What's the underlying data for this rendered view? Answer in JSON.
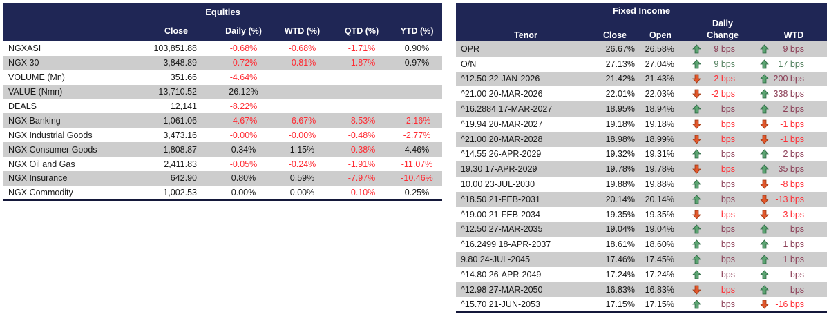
{
  "palette": {
    "navy": "#1F2655",
    "rowGray": "#CDCDCD",
    "red": "#FF2B33",
    "maroon": "#8B3D55",
    "green": "#4E7D5B",
    "arrowUpFill": "#5CA472",
    "arrowUpEdge": "#2F6B45",
    "arrowDownFill": "#E2572B",
    "arrowDownEdge": "#A03B17",
    "borderDark": "#14183A"
  },
  "icons": {
    "up": "up-arrow-icon",
    "down": "down-arrow-icon"
  },
  "equities": {
    "title": "Equities",
    "columns": [
      "Close",
      "Daily (%)",
      "WTD (%)",
      "QTD (%)",
      "YTD (%)"
    ],
    "rows": [
      {
        "name": "NGXASI",
        "close": "103,851.88",
        "daily": "-0.68%",
        "wtd": "-0.68%",
        "qtd": "-1.71%",
        "ytd": "0.90%"
      },
      {
        "name": "NGX 30",
        "close": "3,848.89",
        "daily": "-0.72%",
        "wtd": "-0.81%",
        "qtd": "-1.87%",
        "ytd": "0.97%"
      },
      {
        "name": "VOLUME (Mn)",
        "close": "351.66",
        "daily": "-4.64%",
        "wtd": "",
        "qtd": "",
        "ytd": ""
      },
      {
        "name": "VALUE (Nmn)",
        "close": "13,710.52",
        "daily": "26.12%",
        "wtd": "",
        "qtd": "",
        "ytd": ""
      },
      {
        "name": "DEALS",
        "close": "12,141",
        "daily": "-8.22%",
        "wtd": "",
        "qtd": "",
        "ytd": ""
      },
      {
        "name": "NGX Banking",
        "close": "1,061.06",
        "daily": "-4.67%",
        "wtd": "-6.67%",
        "qtd": "-8.53%",
        "ytd": "-2.16%"
      },
      {
        "name": "NGX Industrial Goods",
        "close": "3,473.16",
        "daily": "-0.00%",
        "wtd": "-0.00%",
        "qtd": "-0.48%",
        "ytd": "-2.77%"
      },
      {
        "name": "NGX Consumer Goods",
        "close": "1,808.87",
        "daily": "0.34%",
        "wtd": "1.15%",
        "qtd": "-0.38%",
        "ytd": "4.46%"
      },
      {
        "name": "NGX Oil and Gas",
        "close": "2,411.83",
        "daily": "-0.05%",
        "wtd": "-0.24%",
        "qtd": "-1.91%",
        "ytd": "-11.07%"
      },
      {
        "name": "NGX Insurance",
        "close": "642.90",
        "daily": "0.80%",
        "wtd": "0.59%",
        "qtd": "-7.97%",
        "ytd": "-10.46%"
      },
      {
        "name": "NGX Commodity",
        "close": "1,002.53",
        "daily": "0.00%",
        "wtd": "0.00%",
        "qtd": "-0.10%",
        "ytd": "0.25%"
      }
    ]
  },
  "fixed_income": {
    "title": "Fixed Income",
    "daily_label": "Daily",
    "columns": [
      "Tenor",
      "Close",
      "Open",
      "Change",
      "WTD"
    ],
    "rows": [
      {
        "tenor": "OPR",
        "close": "26.67%",
        "open": "26.58%",
        "daily": {
          "dir": "up",
          "val": "9 bps",
          "color": "maroon"
        },
        "wtd": {
          "dir": "up",
          "val": "9 bps",
          "color": "maroon"
        }
      },
      {
        "tenor": "O/N",
        "close": "27.13%",
        "open": "27.04%",
        "daily": {
          "dir": "up",
          "val": "9 bps",
          "color": "green"
        },
        "wtd": {
          "dir": "up",
          "val": "17 bps",
          "color": "green"
        }
      },
      {
        "tenor": "^12.50 22-JAN-2026",
        "close": "21.42%",
        "open": "21.43%",
        "daily": {
          "dir": "down",
          "val": "-2 bps",
          "color": "red"
        },
        "wtd": {
          "dir": "up",
          "val": "200 bps",
          "color": "maroon"
        }
      },
      {
        "tenor": "^21.00 20-MAR-2026",
        "close": "22.01%",
        "open": "22.03%",
        "daily": {
          "dir": "down",
          "val": "-2 bps",
          "color": "red"
        },
        "wtd": {
          "dir": "up",
          "val": "338 bps",
          "color": "maroon"
        }
      },
      {
        "tenor": "^16.2884 17-MAR-2027",
        "close": "18.95%",
        "open": "18.94%",
        "daily": {
          "dir": "up",
          "val": "bps",
          "color": "maroon"
        },
        "wtd": {
          "dir": "up",
          "val": "2 bps",
          "color": "maroon"
        }
      },
      {
        "tenor": "^19.94 20-MAR-2027",
        "close": "19.18%",
        "open": "19.18%",
        "daily": {
          "dir": "down",
          "val": "bps",
          "color": "red"
        },
        "wtd": {
          "dir": "down",
          "val": "-1 bps",
          "color": "red"
        }
      },
      {
        "tenor": "^21.00 20-MAR-2028",
        "close": "18.98%",
        "open": "18.99%",
        "daily": {
          "dir": "down",
          "val": "bps",
          "color": "red"
        },
        "wtd": {
          "dir": "down",
          "val": "-1 bps",
          "color": "red"
        }
      },
      {
        "tenor": "^14.55 26-APR-2029",
        "close": "19.32%",
        "open": "19.31%",
        "daily": {
          "dir": "up",
          "val": "bps",
          "color": "maroon"
        },
        "wtd": {
          "dir": "up",
          "val": "2 bps",
          "color": "maroon"
        }
      },
      {
        "tenor": "19.30 17-APR-2029",
        "close": "19.78%",
        "open": "19.78%",
        "daily": {
          "dir": "down",
          "val": "bps",
          "color": "red"
        },
        "wtd": {
          "dir": "up",
          "val": "35 bps",
          "color": "maroon"
        }
      },
      {
        "tenor": "10.00 23-JUL-2030",
        "close": "19.88%",
        "open": "19.88%",
        "daily": {
          "dir": "up",
          "val": "bps",
          "color": "maroon"
        },
        "wtd": {
          "dir": "down",
          "val": "-8 bps",
          "color": "red"
        }
      },
      {
        "tenor": "^18.50 21-FEB-2031",
        "close": "20.14%",
        "open": "20.14%",
        "daily": {
          "dir": "up",
          "val": "bps",
          "color": "maroon"
        },
        "wtd": {
          "dir": "down",
          "val": "-13 bps",
          "color": "red"
        }
      },
      {
        "tenor": "^19.00 21-FEB-2034",
        "close": "19.35%",
        "open": "19.35%",
        "daily": {
          "dir": "down",
          "val": "bps",
          "color": "red"
        },
        "wtd": {
          "dir": "down",
          "val": "-3 bps",
          "color": "red"
        }
      },
      {
        "tenor": "^12.50 27-MAR-2035",
        "close": "19.04%",
        "open": "19.04%",
        "daily": {
          "dir": "up",
          "val": "bps",
          "color": "maroon"
        },
        "wtd": {
          "dir": "up",
          "val": "bps",
          "color": "maroon"
        }
      },
      {
        "tenor": "^16.2499 18-APR-2037",
        "close": "18.61%",
        "open": "18.60%",
        "daily": {
          "dir": "up",
          "val": "bps",
          "color": "maroon"
        },
        "wtd": {
          "dir": "up",
          "val": "1 bps",
          "color": "maroon"
        }
      },
      {
        "tenor": "9.80 24-JUL-2045",
        "close": "17.46%",
        "open": "17.45%",
        "daily": {
          "dir": "up",
          "val": "bps",
          "color": "maroon"
        },
        "wtd": {
          "dir": "up",
          "val": "1 bps",
          "color": "maroon"
        }
      },
      {
        "tenor": "^14.80 26-APR-2049",
        "close": "17.24%",
        "open": "17.24%",
        "daily": {
          "dir": "up",
          "val": "bps",
          "color": "maroon"
        },
        "wtd": {
          "dir": "up",
          "val": "bps",
          "color": "maroon"
        }
      },
      {
        "tenor": "^12.98 27-MAR-2050",
        "close": "16.83%",
        "open": "16.83%",
        "daily": {
          "dir": "down",
          "val": "bps",
          "color": "red"
        },
        "wtd": {
          "dir": "up",
          "val": "bps",
          "color": "maroon"
        }
      },
      {
        "tenor": "^15.70 21-JUN-2053",
        "close": "17.15%",
        "open": "17.15%",
        "daily": {
          "dir": "up",
          "val": "bps",
          "color": "maroon"
        },
        "wtd": {
          "dir": "down",
          "val": "-16 bps",
          "color": "red"
        }
      }
    ]
  }
}
